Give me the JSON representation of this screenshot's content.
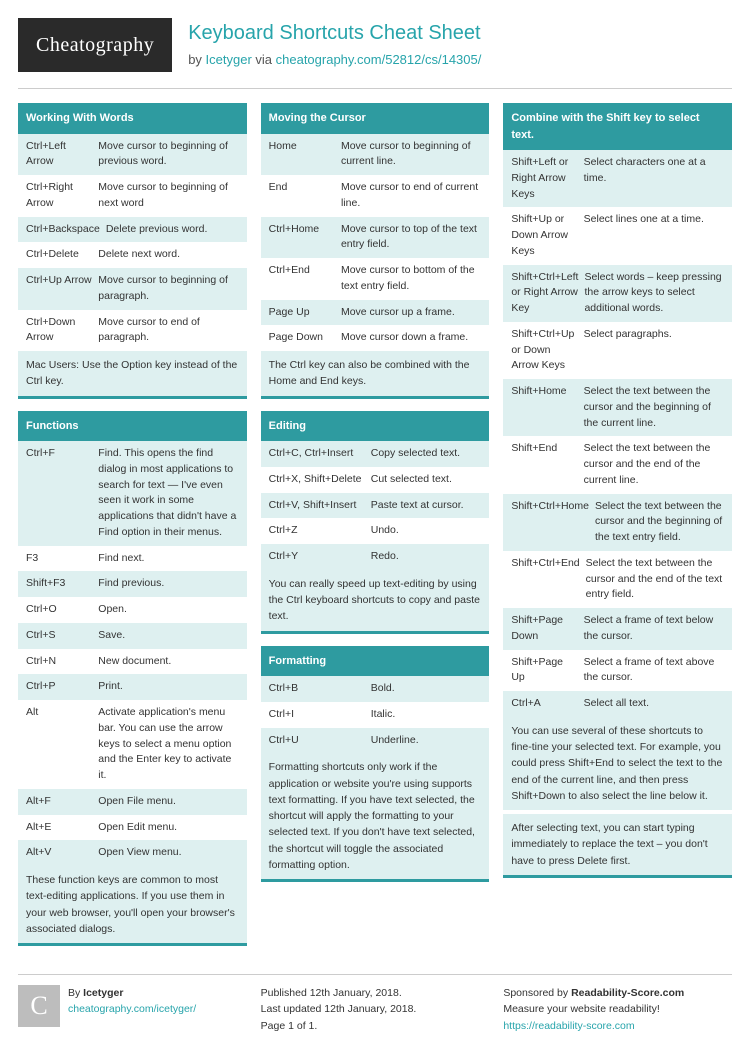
{
  "colors": {
    "accent": "#2e9ba0",
    "link": "#27a4ab",
    "stripe": "#def0f0",
    "logo_bg": "#2a2a2a"
  },
  "header": {
    "logo_text": "Cheatography",
    "title": "Keyboard Shortcuts Cheat Sheet",
    "by_prefix": "by ",
    "author": "Icetyger",
    "via": " via ",
    "url": "cheatography.com/52812/cs/14305/"
  },
  "sections": {
    "working_words": {
      "title": "Working With Words",
      "rows": [
        {
          "k": "Ctrl+Left Arrow",
          "v": "Move cursor to beginning of previous word."
        },
        {
          "k": "Ctrl+Right Arrow",
          "v": "Move cursor to beginning of next word"
        },
        {
          "k": "Ctrl+Backspace",
          "v": "Delete previous word."
        },
        {
          "k": "Ctrl+Delete",
          "v": "Delete next word."
        },
        {
          "k": "Ctrl+Up Arrow",
          "v": "Move cursor to beginning of paragraph."
        },
        {
          "k": "Ctrl+Down Arrow",
          "v": "Move cursor to end of paragraph."
        }
      ],
      "note": "Mac Users: Use the Option key instead of the Ctrl key."
    },
    "functions": {
      "title": "Functions",
      "rows": [
        {
          "k": "Ctrl+F",
          "v": "Find. This opens the find dialog in most applications to search for text — I've even seen it work in some applications that didn't have a Find option in their menus."
        },
        {
          "k": "F3",
          "v": "Find next."
        },
        {
          "k": "Shift+F3",
          "v": "Find previous."
        },
        {
          "k": "Ctrl+O",
          "v": "Open."
        },
        {
          "k": "Ctrl+S",
          "v": "Save."
        },
        {
          "k": "Ctrl+N",
          "v": "New document."
        },
        {
          "k": "Ctrl+P",
          "v": "Print."
        },
        {
          "k": "Alt",
          "v": "Activate application's menu bar. You can use the arrow keys to select a menu option and the Enter key to activate it."
        },
        {
          "k": "Alt+F",
          "v": "Open File menu."
        },
        {
          "k": "Alt+E",
          "v": "Open Edit menu."
        },
        {
          "k": "Alt+V",
          "v": "Open View menu."
        }
      ],
      "note": "These function keys are common to most text-editing applications. If you use them in your web browser, you'll open your browser's associated dialogs."
    },
    "moving_cursor": {
      "title": "Moving the Cursor",
      "rows": [
        {
          "k": "Home",
          "v": "Move cursor to beginning of current line."
        },
        {
          "k": "End",
          "v": "Move cursor to end of current line."
        },
        {
          "k": "Ctrl+Home",
          "v": "Move cursor to top of the text entry field."
        },
        {
          "k": "Ctrl+End",
          "v": "Move cursor to bottom of the text entry field."
        },
        {
          "k": "Page Up",
          "v": "Move cursor up a frame."
        },
        {
          "k": "Page Down",
          "v": "Move cursor down a frame."
        }
      ],
      "note": "The Ctrl key can also be combined with the Home and End keys."
    },
    "editing": {
      "title": "Editing",
      "rows": [
        {
          "k": "Ctrl+C, Ctrl+Insert",
          "v": "Copy selected text."
        },
        {
          "k": "Ctrl+X, Shift+Delete",
          "v": "Cut selected text."
        },
        {
          "k": "Ctrl+V, Shift+Insert",
          "v": "Paste text at cursor."
        },
        {
          "k": "Ctrl+Z",
          "v": "Undo."
        },
        {
          "k": "Ctrl+Y",
          "v": "Redo."
        }
      ],
      "note": "You can really speed up text-editing by using the Ctrl keyboard shortcuts to copy and paste text."
    },
    "formatting": {
      "title": "Formatting",
      "rows": [
        {
          "k": "Ctrl+B",
          "v": "Bold."
        },
        {
          "k": "Ctrl+I",
          "v": "Italic."
        },
        {
          "k": "Ctrl+U",
          "v": "Underline."
        }
      ],
      "note": "Formatting shortcuts only work if the application or website you're using supports text formatting. If you have text selected, the shortcut will apply the formatting to your selected text. If you don't have text selected, the shortcut will toggle the associated formatting option."
    },
    "shift_select": {
      "title": "Combine with the Shift key to select text.",
      "rows": [
        {
          "k": "Shift+Left or Right Arrow Keys",
          "v": "Select characters one at a time."
        },
        {
          "k": "Shift+Up or Down Arrow Keys",
          "v": "Select lines one at a time."
        },
        {
          "k": "Shift+Ctrl+Left or Right Arrow Key",
          "v": "Select words – keep pressing the arrow keys to select additional words."
        },
        {
          "k": "Shift+Ctrl+Up or Down Arrow Keys",
          "v": "Select paragraphs."
        },
        {
          "k": "Shift+Home",
          "v": "Select the text between the cursor and the beginning of the current line."
        },
        {
          "k": "Shift+End",
          "v": "Select the text between the cursor and the end of the current line."
        },
        {
          "k": "Shift+Ctrl+Home",
          "v": "Select the text between the cursor and the beginning of the text entry field."
        },
        {
          "k": "Shift+Ctrl+End",
          "v": "Select the text between the cursor and the end of the text entry field."
        },
        {
          "k": "Shift+Page Down",
          "v": "Select a frame of text below the cursor."
        },
        {
          "k": "Shift+Page Up",
          "v": "Select a frame of text above the cursor."
        },
        {
          "k": "Ctrl+A",
          "v": "Select all text."
        }
      ],
      "note1": "You can use several of these shortcuts to fine-tine your selected text. For example, you could press Shift+End to select the text to the end of the current line, and then press Shift+Down to also select the line below it.",
      "note2": "After selecting text, you can start typing immediately to replace the text – you don't have to press Delete first."
    }
  },
  "footer": {
    "avatar_letter": "C",
    "by_label": "By ",
    "author": "Icetyger",
    "author_url": "cheatography.com/icetyger/",
    "published": "Published 12th January, 2018.",
    "updated": "Last updated 12th January, 2018.",
    "page": "Page 1 of 1.",
    "sponsor_prefix": "Sponsored by ",
    "sponsor_name": "Readability-Score.com",
    "sponsor_tag": "Measure your website readability!",
    "sponsor_url": "https://readability-score.com"
  }
}
